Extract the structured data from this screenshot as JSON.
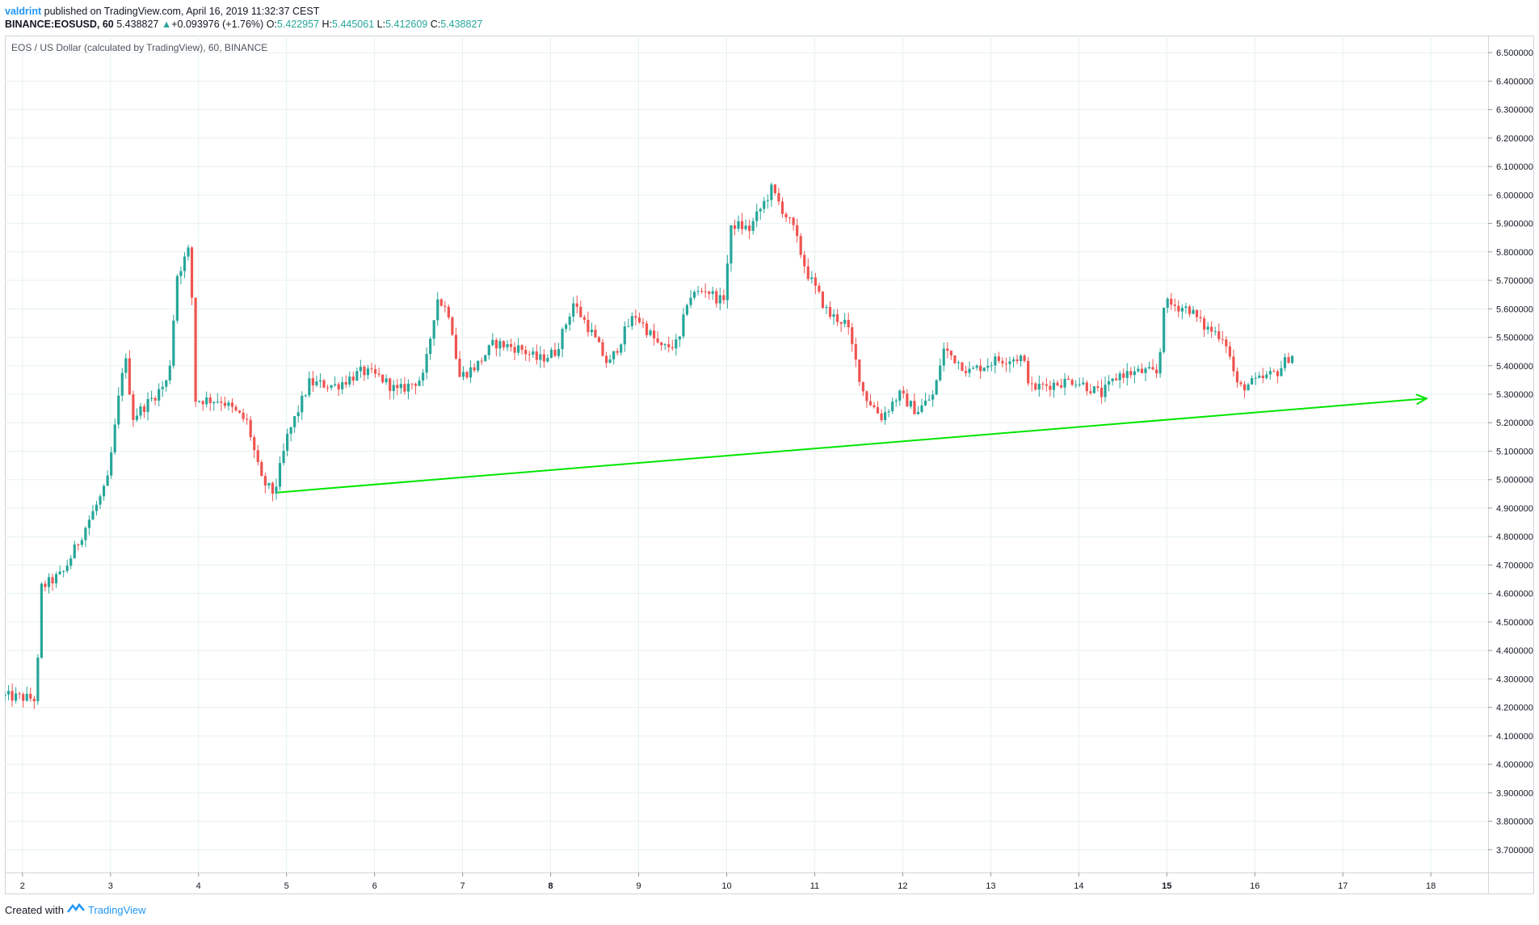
{
  "header": {
    "user": "valdrint",
    "published": "published on TradingView.com, April 16, 2019 11:32:37 CEST",
    "symbol": "BINANCE:EOSUSD, 60",
    "last": "5.438827",
    "change_arrow": "▲",
    "change": "+0.093976 (+1.76%)",
    "o_label": "O:",
    "o_value": "5.422957",
    "h_label": "H:",
    "h_value": "5.445061",
    "l_label": "L:",
    "l_value": "5.412609",
    "c_label": "C:",
    "c_value": "5.438827"
  },
  "footer": {
    "created_with": "Created with",
    "brand": "TradingView"
  },
  "colors": {
    "up": "#26a69a",
    "down": "#ef5350",
    "trendline": "#00e600",
    "grid": "#e6f1f1"
  },
  "chart_data": {
    "type": "candlestick",
    "title": "EOS / US Dollar (calculated by TradingView), 60, BINANCE",
    "timeframe": "60",
    "ylim": [
      3.62,
      6.56
    ],
    "y_ticks": [
      "6.500000",
      "6.400000",
      "6.300000",
      "6.200000",
      "6.100000",
      "6.000000",
      "5.900000",
      "5.800000",
      "5.700000",
      "5.600000",
      "5.500000",
      "5.400000",
      "5.300000",
      "5.200000",
      "5.100000",
      "5.000000",
      "4.900000",
      "4.800000",
      "4.700000",
      "4.600000",
      "4.500000",
      "4.400000",
      "4.300000",
      "4.200000",
      "4.100000",
      "4.000000",
      "3.900000",
      "3.800000",
      "3.700000"
    ],
    "x_ticks": [
      "2",
      "3",
      "4",
      "5",
      "6",
      "7",
      "8",
      "9",
      "10",
      "11",
      "12",
      "13",
      "14",
      "15",
      "16",
      "17",
      "18"
    ],
    "xlim_days": [
      1.8,
      18.65
    ],
    "price_path": [
      [
        1.8,
        4.24
      ],
      [
        2.2,
        4.23
      ],
      [
        2.25,
        4.62
      ],
      [
        2.5,
        4.67
      ],
      [
        2.8,
        4.86
      ],
      [
        3.0,
        4.98
      ],
      [
        3.1,
        5.2
      ],
      [
        3.2,
        5.45
      ],
      [
        3.3,
        5.22
      ],
      [
        3.5,
        5.28
      ],
      [
        3.7,
        5.35
      ],
      [
        3.8,
        5.72
      ],
      [
        3.95,
        5.82
      ],
      [
        4.0,
        5.28
      ],
      [
        4.3,
        5.28
      ],
      [
        4.6,
        5.2
      ],
      [
        4.75,
        5.0
      ],
      [
        4.9,
        4.95
      ],
      [
        5.05,
        5.15
      ],
      [
        5.3,
        5.34
      ],
      [
        5.6,
        5.33
      ],
      [
        5.9,
        5.38
      ],
      [
        6.1,
        5.36
      ],
      [
        6.3,
        5.31
      ],
      [
        6.6,
        5.36
      ],
      [
        6.75,
        5.64
      ],
      [
        6.9,
        5.58
      ],
      [
        7.0,
        5.36
      ],
      [
        7.2,
        5.4
      ],
      [
        7.4,
        5.48
      ],
      [
        7.7,
        5.46
      ],
      [
        7.9,
        5.42
      ],
      [
        8.1,
        5.45
      ],
      [
        8.3,
        5.62
      ],
      [
        8.5,
        5.52
      ],
      [
        8.7,
        5.4
      ],
      [
        8.9,
        5.53
      ],
      [
        9.0,
        5.58
      ],
      [
        9.3,
        5.46
      ],
      [
        9.5,
        5.48
      ],
      [
        9.6,
        5.64
      ],
      [
        9.8,
        5.67
      ],
      [
        10.0,
        5.62
      ],
      [
        10.1,
        5.9
      ],
      [
        10.3,
        5.88
      ],
      [
        10.55,
        6.02
      ],
      [
        10.8,
        5.88
      ],
      [
        10.95,
        5.73
      ],
      [
        11.2,
        5.58
      ],
      [
        11.4,
        5.55
      ],
      [
        11.6,
        5.3
      ],
      [
        11.8,
        5.22
      ],
      [
        12.0,
        5.3
      ],
      [
        12.2,
        5.24
      ],
      [
        12.4,
        5.3
      ],
      [
        12.5,
        5.46
      ],
      [
        12.8,
        5.38
      ],
      [
        13.1,
        5.42
      ],
      [
        13.4,
        5.43
      ],
      [
        13.5,
        5.32
      ],
      [
        13.8,
        5.34
      ],
      [
        14.0,
        5.35
      ],
      [
        14.3,
        5.3
      ],
      [
        14.5,
        5.37
      ],
      [
        14.8,
        5.38
      ],
      [
        14.95,
        5.37
      ],
      [
        15.0,
        5.62
      ],
      [
        15.3,
        5.6
      ],
      [
        15.45,
        5.54
      ],
      [
        15.7,
        5.5
      ],
      [
        15.85,
        5.32
      ],
      [
        16.1,
        5.35
      ],
      [
        16.3,
        5.38
      ],
      [
        16.45,
        5.44
      ]
    ],
    "annotations": [
      {
        "type": "trendline",
        "x1": 4.9,
        "y1": 4.955,
        "x2": 17.95,
        "y2": 5.285,
        "arrow": true
      }
    ]
  }
}
